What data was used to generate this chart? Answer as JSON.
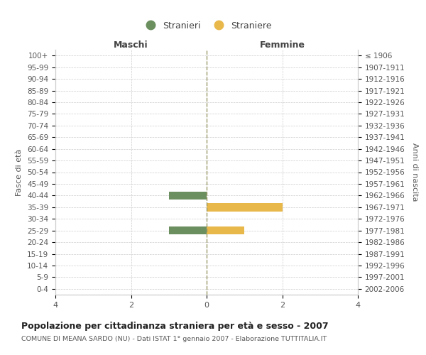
{
  "age_groups": [
    "0-4",
    "5-9",
    "10-14",
    "15-19",
    "20-24",
    "25-29",
    "30-34",
    "35-39",
    "40-44",
    "45-49",
    "50-54",
    "55-59",
    "60-64",
    "65-69",
    "70-74",
    "75-79",
    "80-84",
    "85-89",
    "90-94",
    "95-99",
    "100+"
  ],
  "birth_years": [
    "2002-2006",
    "1997-2001",
    "1992-1996",
    "1987-1991",
    "1982-1986",
    "1977-1981",
    "1972-1976",
    "1967-1971",
    "1962-1966",
    "1957-1961",
    "1952-1956",
    "1947-1951",
    "1942-1946",
    "1937-1941",
    "1932-1936",
    "1927-1931",
    "1922-1926",
    "1917-1921",
    "1912-1916",
    "1907-1911",
    "≤ 1906"
  ],
  "males": [
    0,
    0,
    0,
    0,
    0,
    1,
    0,
    0,
    1,
    0,
    0,
    0,
    0,
    0,
    0,
    0,
    0,
    0,
    0,
    0,
    0
  ],
  "females": [
    0,
    0,
    0,
    0,
    0,
    1,
    0,
    2,
    0,
    0,
    0,
    0,
    0,
    0,
    0,
    0,
    0,
    0,
    0,
    0,
    0
  ],
  "male_color": "#6b8f5e",
  "female_color": "#e8b84b",
  "xlim": 4,
  "title": "Popolazione per cittadinanza straniera per età e sesso - 2007",
  "subtitle": "COMUNE DI MEANA SARDO (NU) - Dati ISTAT 1° gennaio 2007 - Elaborazione TUTTITALIA.IT",
  "xlabel_left": "Maschi",
  "xlabel_right": "Femmine",
  "ylabel_left": "Fasce di età",
  "ylabel_right": "Anni di nascita",
  "legend_male": "Stranieri",
  "legend_female": "Straniere",
  "bg_color": "#ffffff",
  "grid_color": "#cccccc",
  "center_line_color": "#999966",
  "xticks": [
    -4,
    -2,
    0,
    2,
    4
  ],
  "xticklabels": [
    "4",
    "2",
    "0",
    "2",
    "4"
  ]
}
